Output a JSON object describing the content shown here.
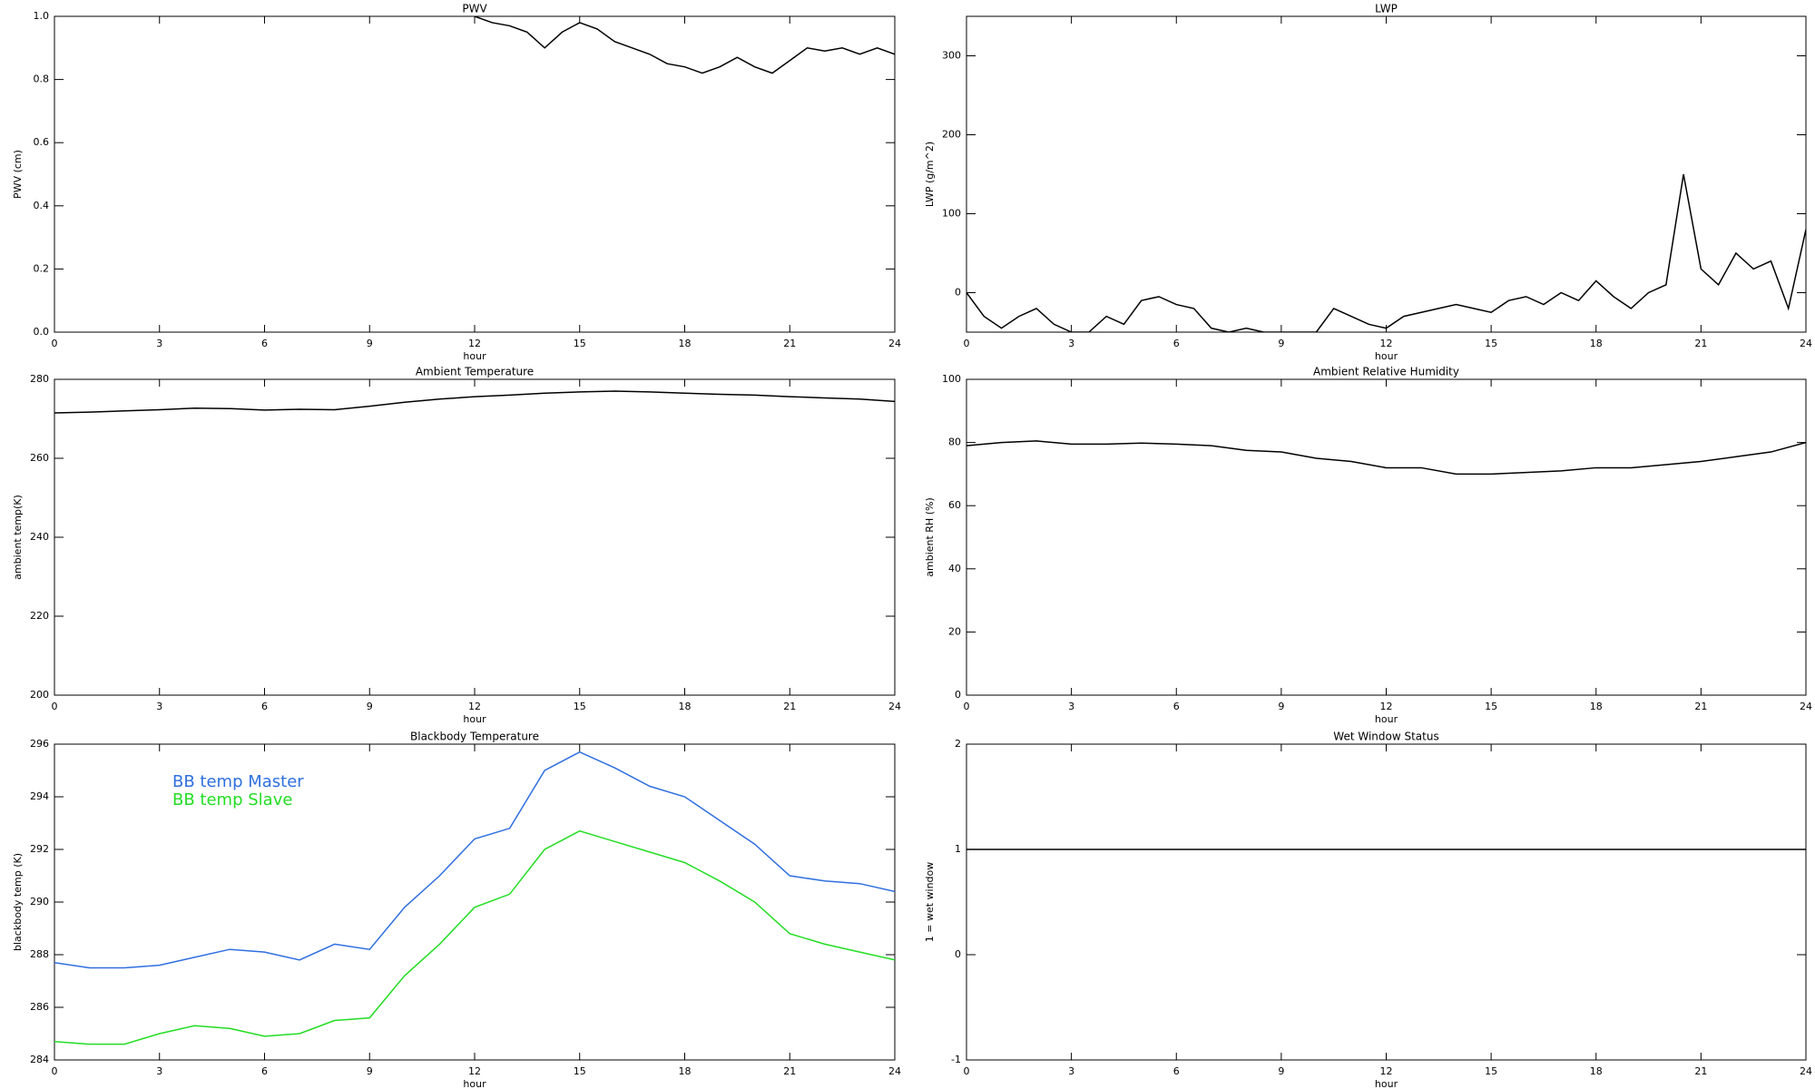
{
  "chart_data": [
    {
      "type": "line",
      "title": "PWV",
      "xlabel": "hour",
      "ylabel": "PWV (cm)",
      "color": "#000000",
      "x": [
        12,
        12.5,
        13,
        13.5,
        14,
        14.5,
        15,
        15.5,
        16,
        16.5,
        17,
        17.5,
        18,
        18.5,
        19,
        19.5,
        20,
        20.5,
        21,
        21.5,
        22,
        22.5,
        23,
        23.5,
        24
      ],
      "values": [
        1.0,
        0.98,
        0.97,
        0.95,
        0.9,
        0.95,
        0.98,
        0.96,
        0.92,
        0.9,
        0.88,
        0.85,
        0.84,
        0.82,
        0.84,
        0.87,
        0.84,
        0.82,
        0.86,
        0.9,
        0.89,
        0.9,
        0.88,
        0.9,
        0.88
      ],
      "xlim": [
        0,
        24
      ],
      "xticks": [
        0,
        3,
        6,
        9,
        12,
        15,
        18,
        21,
        24
      ],
      "ylim": [
        0,
        1
      ],
      "yticks": [
        {
          "value": 0,
          "label": "0.0"
        },
        {
          "value": 0.2,
          "label": "0.2"
        },
        {
          "value": 0.4,
          "label": "0.4"
        },
        {
          "value": 0.6,
          "label": "0.6"
        },
        {
          "value": 0.8,
          "label": "0.8"
        },
        {
          "value": 1,
          "label": "1.0"
        }
      ]
    },
    {
      "type": "line",
      "title": "LWP",
      "xlabel": "hour",
      "ylabel": "LWP (g/m^2)",
      "color": "#000000",
      "x": [
        0,
        0.5,
        1,
        1.5,
        2,
        2.5,
        3,
        3.5,
        4,
        4.5,
        5,
        5.5,
        6,
        6.5,
        7,
        7.5,
        8,
        8.5,
        9,
        9.5,
        10,
        10.5,
        11,
        11.5,
        12,
        12.5,
        13,
        13.5,
        14,
        14.5,
        15,
        15.5,
        16,
        16.5,
        17,
        17.5,
        18,
        18.5,
        19,
        19.5,
        20,
        20.5,
        21,
        21.5,
        22,
        22.5,
        23,
        23.5,
        24
      ],
      "values": [
        0,
        -30,
        -45,
        -30,
        -20,
        -40,
        -50,
        -50,
        -30,
        -40,
        -10,
        -5,
        -15,
        -20,
        -45,
        -50,
        -45,
        -50,
        -50,
        -50,
        -50,
        -20,
        -30,
        -40,
        -45,
        -30,
        -25,
        -20,
        -15,
        -20,
        -25,
        -10,
        -5,
        -15,
        0,
        -10,
        15,
        -5,
        -20,
        0,
        10,
        150,
        30,
        10,
        50,
        30,
        40,
        -20,
        80
      ],
      "xlim": [
        0,
        24
      ],
      "xticks": [
        0,
        3,
        6,
        9,
        12,
        15,
        18,
        21,
        24
      ],
      "ylim": [
        -50,
        350
      ],
      "yticks": [
        0,
        100,
        200,
        300
      ]
    },
    {
      "type": "line",
      "title": "Ambient Temperature",
      "xlabel": "hour",
      "ylabel": "ambient temp(K)",
      "color": "#000000",
      "x": [
        0,
        1,
        2,
        3,
        4,
        5,
        6,
        7,
        8,
        9,
        10,
        11,
        12,
        13,
        14,
        15,
        16,
        17,
        18,
        19,
        20,
        21,
        22,
        23,
        24
      ],
      "values": [
        271.5,
        271.7,
        272,
        272.3,
        272.7,
        272.6,
        272.2,
        272.4,
        272.3,
        273.2,
        274.2,
        275,
        275.6,
        276,
        276.5,
        276.8,
        277,
        276.8,
        276.5,
        276.2,
        276,
        275.6,
        275.3,
        275,
        274.4
      ],
      "xlim": [
        0,
        24
      ],
      "xticks": [
        0,
        3,
        6,
        9,
        12,
        15,
        18,
        21,
        24
      ],
      "ylim": [
        200,
        280
      ],
      "yticks": [
        200,
        220,
        240,
        260,
        280
      ]
    },
    {
      "type": "line",
      "title": "Ambient Relative Humidity",
      "xlabel": "hour",
      "ylabel": "ambient RH (%)",
      "color": "#000000",
      "x": [
        0,
        1,
        2,
        3,
        4,
        5,
        6,
        7,
        8,
        9,
        10,
        11,
        12,
        13,
        14,
        15,
        16,
        17,
        18,
        19,
        20,
        21,
        22,
        23,
        24
      ],
      "values": [
        79,
        80,
        80.5,
        79.5,
        79.5,
        79.8,
        79.5,
        79,
        77.5,
        77,
        75,
        74,
        72,
        72,
        70,
        70,
        70.5,
        71,
        72,
        72,
        73,
        74,
        75.5,
        77,
        80
      ],
      "xlim": [
        0,
        24
      ],
      "xticks": [
        0,
        3,
        6,
        9,
        12,
        15,
        18,
        21,
        24
      ],
      "ylim": [
        0,
        100
      ],
      "yticks": [
        0,
        20,
        40,
        60,
        80,
        100
      ]
    },
    {
      "type": "line",
      "title": "Blackbody Temperature",
      "xlabel": "hour",
      "ylabel": "blackbody temp (K)",
      "legend": "upper left",
      "x": [
        0,
        1,
        2,
        3,
        4,
        5,
        6,
        7,
        8,
        9,
        10,
        11,
        12,
        13,
        14,
        15,
        16,
        17,
        18,
        19,
        20,
        21,
        22,
        23,
        24
      ],
      "series": [
        {
          "name": "BB temp Master",
          "color": "#2f6fe0",
          "values": [
            287.7,
            287.5,
            287.5,
            287.6,
            287.9,
            288.2,
            288.1,
            287.8,
            288.4,
            288.2,
            289.8,
            291,
            292.4,
            292.8,
            295,
            295.7,
            295.1,
            294.4,
            294,
            293.1,
            292.2,
            291,
            290.8,
            290.7,
            290.4
          ]
        },
        {
          "name": "BB temp Slave",
          "color": "#22dd22",
          "values": [
            284.7,
            284.6,
            284.6,
            285,
            285.3,
            285.2,
            284.9,
            285,
            285.5,
            285.6,
            287.2,
            288.4,
            289.8,
            290.3,
            292,
            292.7,
            292.3,
            291.9,
            291.5,
            290.8,
            290,
            288.8,
            288.4,
            288.1,
            287.8
          ]
        }
      ],
      "xlim": [
        0,
        24
      ],
      "xticks": [
        0,
        3,
        6,
        9,
        12,
        15,
        18,
        21,
        24
      ],
      "ylim": [
        284,
        296
      ],
      "yticks": [
        284,
        286,
        288,
        290,
        292,
        294,
        296
      ]
    },
    {
      "type": "line",
      "title": "Wet Window Status",
      "xlabel": "hour",
      "ylabel": "1 = wet window",
      "color": "#000000",
      "x": [
        0,
        24
      ],
      "values": [
        1,
        1
      ],
      "xlim": [
        0,
        24
      ],
      "xticks": [
        0,
        3,
        6,
        9,
        12,
        15,
        18,
        21,
        24
      ],
      "ylim": [
        -1,
        2
      ],
      "yticks": [
        -1,
        0,
        1,
        2
      ]
    }
  ]
}
